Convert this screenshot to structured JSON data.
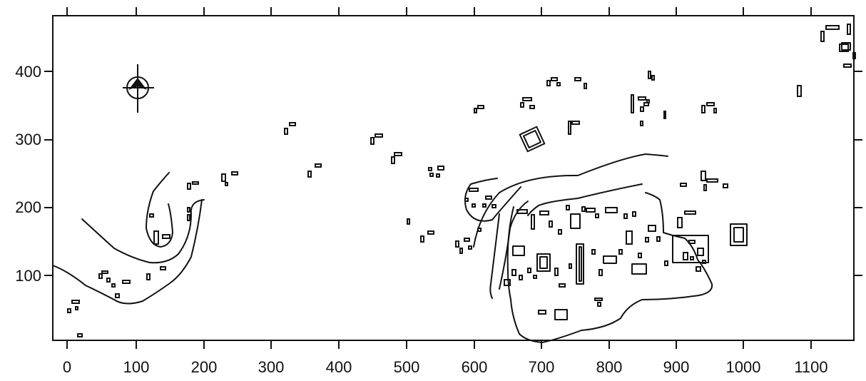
{
  "map": {
    "x_axis": {
      "ticks": [
        "0",
        "100",
        "200",
        "300",
        "400",
        "500",
        "600",
        "700",
        "800",
        "900",
        "1000",
        "1100"
      ],
      "range": [
        0,
        1160
      ]
    },
    "y_axis": {
      "ticks": [
        "100",
        "200",
        "300",
        "400"
      ],
      "range": [
        0,
        470
      ]
    },
    "north_arrow_icon": "north-arrow-icon",
    "ink_color": "#111111",
    "background": "#ffffff"
  }
}
